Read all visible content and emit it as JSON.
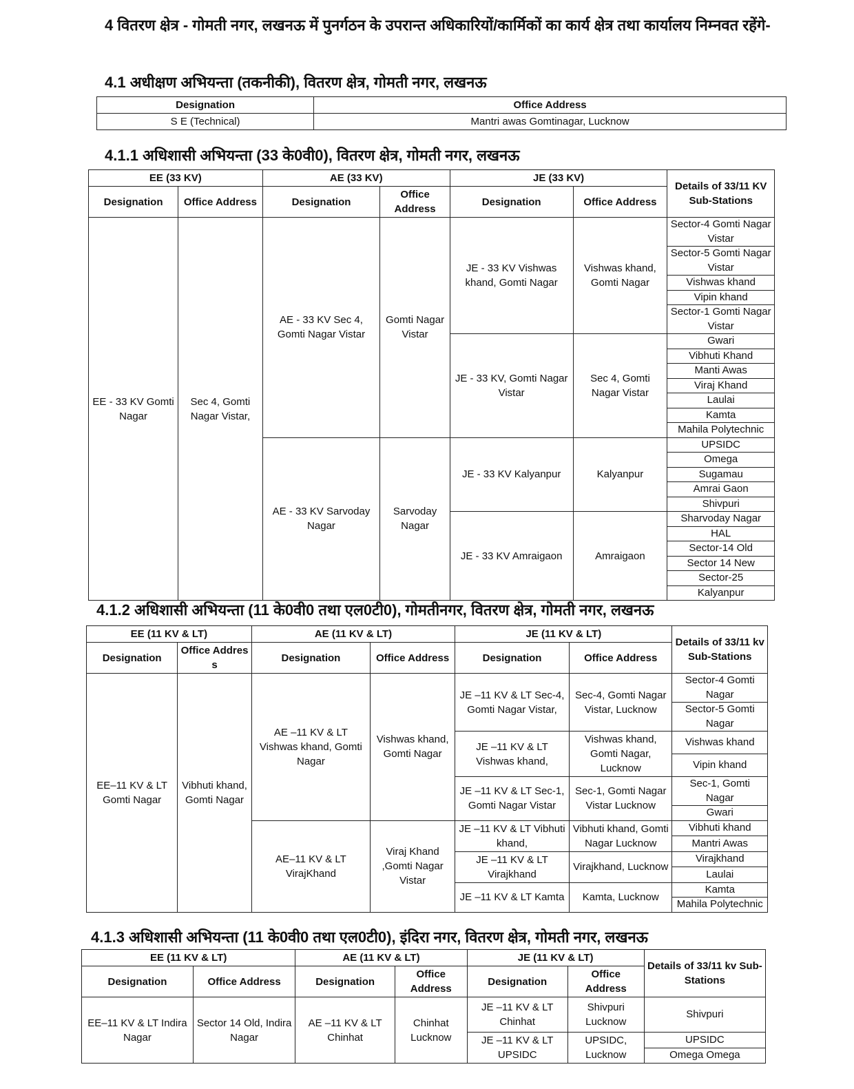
{
  "intro": "4 वितरण क्षेत्र - गोमती नगर, लखनऊ में पुनर्गठन के उपरान्त अधिकारियों/कार्मिकों का कार्य क्षेत्र तथा कार्यालय निम्नवत रहेंगे-",
  "s41": {
    "title": "4.1 अधीक्षण अभियन्ता (तकनीकी), वितरण क्षेत्र, गोमती नगर, लखनऊ",
    "headers": [
      "Designation",
      "Office Address"
    ],
    "row": [
      "S E (Technical)",
      "Mantri awas Gomtinagar, Lucknow"
    ]
  },
  "s411": {
    "title": "4.1.1 अधिशासी अभियन्ता (33 के0वी0), वितरण क्षेत्र, गोमती नगर, लखनऊ",
    "headers": {
      "ee": "EE (33 KV)",
      "ae": "AE (33 KV)",
      "je": "JE (33 KV)",
      "designation": "Designation",
      "office": "Office Address",
      "subs": "Details of 33/11 KV Sub-Stations"
    },
    "ee": {
      "designation": "EE - 33 KV Gomti Nagar",
      "office": "Sec 4, Gomti Nagar Vistar,"
    },
    "ae_groups": [
      {
        "designation": "AE - 33 KV Sec 4, Gomti Nagar Vistar",
        "office": "Gomti Nagar Vistar",
        "je_groups": [
          {
            "designation": "JE - 33 KV Vishwas khand, Gomti Nagar",
            "office": "Vishwas khand, Gomti Nagar",
            "substations": [
              "Sector-4 Gomti Nagar Vistar",
              "Sector-5 Gomti Nagar Vistar",
              "Vishwas khand",
              "Vipin khand",
              "Sector-1 Gomti Nagar Vistar"
            ]
          },
          {
            "designation": "JE - 33 KV, Gomti Nagar Vistar",
            "office": "Sec 4, Gomti Nagar Vistar",
            "substations": [
              "Gwari",
              "Vibhuti Khand",
              "Manti Awas",
              "Viraj Khand",
              "Laulai",
              "Kamta",
              "Mahila Polytechnic"
            ]
          }
        ]
      },
      {
        "designation": "AE - 33 KV Sarvoday Nagar",
        "office": "Sarvoday Nagar",
        "je_groups": [
          {
            "designation": "JE - 33 KV Kalyanpur",
            "office": "Kalyanpur",
            "substations": [
              "UPSIDC",
              "Omega",
              "Sugamau",
              "Amrai Gaon",
              "Shivpuri"
            ]
          },
          {
            "designation": "JE - 33 KV Amraigaon",
            "office": "Amraigaon",
            "substations": [
              "Sharvoday Nagar",
              "HAL",
              "Sector-14 Old",
              "Sector 14 New",
              "Sector-25",
              "Kalyanpur"
            ]
          }
        ]
      }
    ]
  },
  "s412": {
    "title": "4.1.2 अधिशासी अभियन्ता (11 के0वी0 तथा एल0टी0), गोमतीनगर, वितरण क्षेत्र, गोमती नगर, लखनऊ",
    "headers": {
      "ee": "EE (11 KV & LT)",
      "ae": "AE (11 KV & LT)",
      "je": "JE (11 KV & LT)",
      "designation": "Designation",
      "office": "Office Address",
      "ee_office": "Office Addres s",
      "subs": "Details of 33/11 kv Sub-Stations"
    },
    "ee": {
      "designation": "EE–11 KV & LT Gomti Nagar",
      "office": "Vibhuti khand, Gomti Nagar"
    },
    "ae_groups": [
      {
        "designation": "AE –11 KV & LT Vishwas khand, Gomti Nagar",
        "office": "Vishwas khand, Gomti Nagar",
        "je_groups": [
          {
            "designation": "JE –11 KV & LT Sec-4, Gomti Nagar Vistar,",
            "office": "Sec-4, Gomti Nagar Vistar, Lucknow",
            "substations": [
              "Sector-4 Gomti Nagar",
              "Sector-5 Gomti Nagar"
            ]
          },
          {
            "designation": "JE –11 KV & LT Vishwas khand,",
            "office": "Vishwas khand, Gomti Nagar, Lucknow",
            "substations": [
              "Vishwas khand",
              "Vipin khand"
            ]
          },
          {
            "designation": "JE –11 KV & LT Sec-1, Gomti Nagar Vistar",
            "office": "Sec-1, Gomti Nagar Vistar Lucknow",
            "substations": [
              "Sec-1, Gomti Nagar",
              "Gwari"
            ]
          }
        ]
      },
      {
        "designation": "AE–11 KV & LT VirajKhand",
        "office": "Viraj Khand ,Gomti Nagar Vistar",
        "je_groups": [
          {
            "designation": "JE –11 KV & LT Vibhuti khand,",
            "office": "Vibhuti khand, Gomti Nagar Lucknow",
            "substations": [
              "Vibhuti khand",
              "Mantri Awas"
            ]
          },
          {
            "designation": "JE –11 KV & LT Virajkhand",
            "office": "Virajkhand, Lucknow",
            "substations": [
              "Virajkhand",
              "Laulai"
            ]
          },
          {
            "designation": "JE –11 KV & LT Kamta",
            "office": "Kamta, Lucknow",
            "substations": [
              "Kamta",
              "Mahila Polytechnic"
            ]
          }
        ]
      }
    ]
  },
  "s413": {
    "title": "4.1.3 अधिशासी अभियन्ता (11 के0वी0 तथा एल0टी0), इंदिरा नगर, वितरण क्षेत्र, गोमती नगर, लखनऊ",
    "headers": {
      "ee": "EE (11 KV & LT)",
      "ae": "AE (11 KV & LT)",
      "je": "JE (11 KV & LT)",
      "designation": "Designation",
      "office": "Office Address",
      "subs": "Details of 33/11 kv Sub-Stations"
    },
    "ee": {
      "designation": "EE–11 KV & LT Indira Nagar",
      "office": "Sector 14 Old, Indira Nagar"
    },
    "ae_groups": [
      {
        "designation": "AE –11 KV & LT Chinhat",
        "office": "Chinhat Lucknow",
        "je_groups": [
          {
            "designation": "JE –11 KV & LT Chinhat",
            "office": "Shivpuri Lucknow",
            "substations": [
              "Shivpuri"
            ]
          },
          {
            "designation": "JE –11 KV & LT UPSIDC",
            "office": "UPSIDC, Lucknow",
            "substations": [
              "UPSIDC",
              "Omega Omega"
            ]
          }
        ]
      }
    ]
  }
}
